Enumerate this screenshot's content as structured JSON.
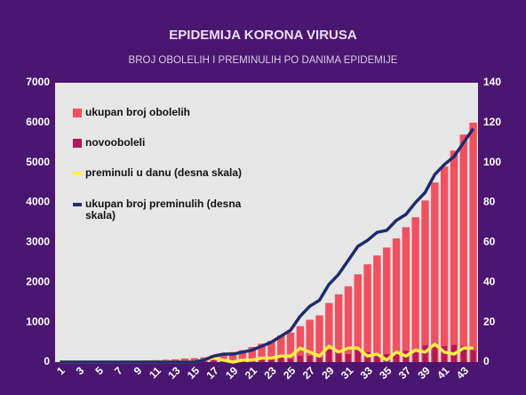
{
  "chart_data": {
    "type": "bar",
    "title": "EPIDEMIJA KORONA VIRUSA",
    "subtitle": "BROJ OBOLELIH I PREMINULIH PO DANIMA EPIDEMIJE",
    "categories": [
      1,
      null,
      3,
      null,
      5,
      null,
      7,
      null,
      9,
      null,
      11,
      null,
      13,
      null,
      15,
      null,
      17,
      null,
      19,
      null,
      21,
      null,
      23,
      null,
      25,
      null,
      27,
      null,
      29,
      null,
      31,
      null,
      33,
      null,
      35,
      null,
      37,
      null,
      39,
      null,
      41,
      null,
      43,
      null
    ],
    "series": [
      {
        "name": "ukupan broj obolelih",
        "type": "bar",
        "color": "#f2505e",
        "axis": "y",
        "values": [
          1,
          1,
          2,
          3,
          5,
          10,
          15,
          20,
          30,
          40,
          50,
          60,
          70,
          90,
          100,
          120,
          170,
          220,
          250,
          300,
          380,
          460,
          530,
          660,
          740,
          900,
          1060,
          1170,
          1480,
          1700,
          1900,
          2200,
          2450,
          2670,
          2870,
          3100,
          3380,
          3630,
          4050,
          4500,
          4900,
          5300,
          5700,
          6000
        ]
      },
      {
        "name": "novooboleli",
        "type": "bar",
        "color": "#b2185a",
        "axis": "y",
        "values": [
          1,
          0,
          1,
          1,
          2,
          5,
          5,
          5,
          10,
          10,
          10,
          10,
          10,
          20,
          10,
          20,
          50,
          50,
          30,
          50,
          80,
          80,
          70,
          130,
          80,
          160,
          160,
          110,
          310,
          220,
          200,
          300,
          250,
          220,
          200,
          230,
          280,
          250,
          420,
          450,
          400,
          430,
          400,
          300
        ]
      },
      {
        "name": "preminuli u danu (desna skala)",
        "type": "line",
        "color": "#ffee44",
        "axis": "y2",
        "values": [
          0,
          0,
          0,
          0,
          0,
          0,
          0,
          0,
          0,
          0,
          0,
          0,
          0,
          0,
          0,
          1,
          2,
          1,
          0,
          1,
          1,
          2,
          2,
          3,
          3,
          7,
          5,
          3,
          8,
          5,
          7,
          7,
          3,
          4,
          1,
          5,
          3,
          6,
          5,
          9,
          5,
          4,
          7,
          7
        ]
      },
      {
        "name": "ukupan broj preminulih (desna skala)",
        "type": "line",
        "color": "#1f2a6e",
        "axis": "y2",
        "values": [
          0,
          0,
          0,
          0,
          0,
          0,
          0,
          0,
          0,
          0,
          0,
          0,
          0,
          0,
          0,
          1,
          3,
          4,
          4,
          5,
          6,
          8,
          10,
          13,
          16,
          23,
          28,
          31,
          39,
          44,
          51,
          58,
          61,
          65,
          66,
          71,
          74,
          80,
          85,
          94,
          99,
          103,
          110,
          117
        ]
      }
    ],
    "ylim": [
      0,
      7000
    ],
    "yticks": [
      0,
      1000,
      2000,
      3000,
      4000,
      5000,
      6000,
      7000
    ],
    "y2lim": [
      0,
      140
    ],
    "y2ticks": [
      0,
      20,
      40,
      60,
      80,
      100,
      120,
      140
    ],
    "grid": false,
    "legend": "top-left"
  }
}
